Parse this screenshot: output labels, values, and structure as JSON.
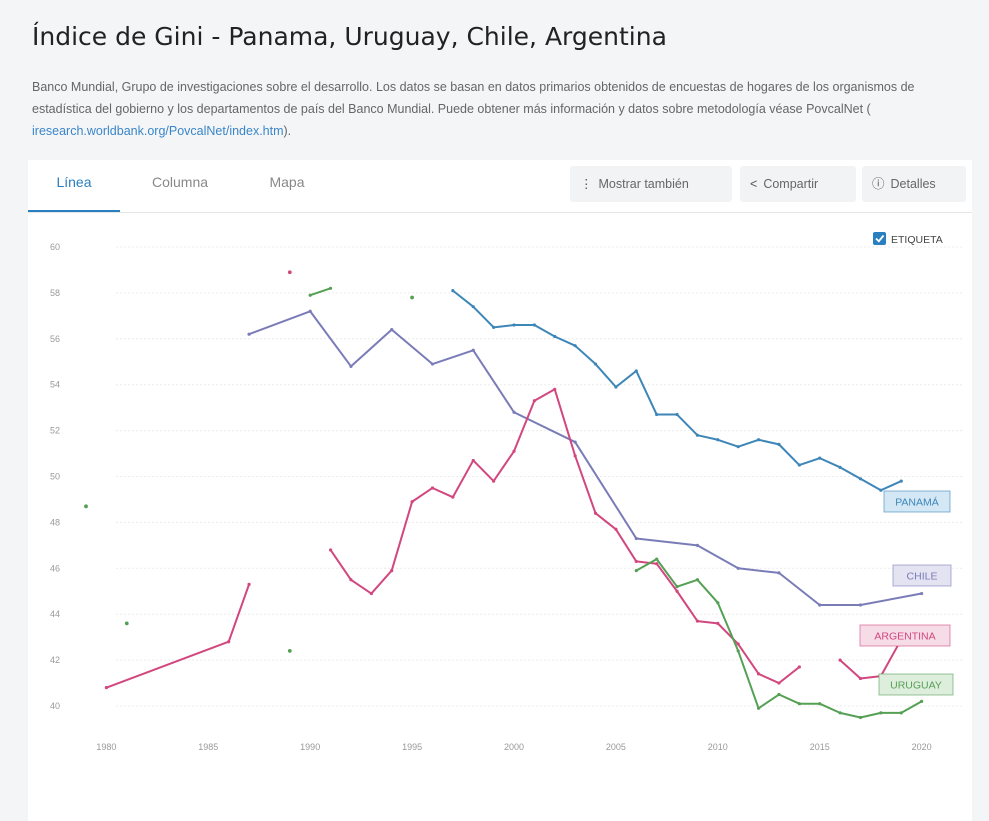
{
  "page": {
    "title": "Índice de Gini - Panama, Uruguay, Chile, Argentina",
    "description_main": "Banco Mundial, Grupo de investigaciones sobre el desarrollo. Los datos se basan en datos primarios obtenidos de encuestas de hogares de los organismos de estadística del gobierno y los departamentos de país del Banco Mundial. Puede obtener más información y datos sobre metodología véase PovcalNet (",
    "description_link": "iresearch.worldbank.org/PovcalNet/index.htm",
    "description_end": ")."
  },
  "tabs": [
    {
      "label": "Línea",
      "active": true
    },
    {
      "label": "Columna",
      "active": false
    },
    {
      "label": "Mapa",
      "active": false
    }
  ],
  "toolbar": {
    "mostrar": "Mostrar también",
    "compartir": "Compartir",
    "detalles": "Detalles",
    "mostrar_icon": "more-vertical-icon",
    "compartir_icon": "share-icon",
    "detalles_icon": "info-icon"
  },
  "checkbox": {
    "label": "ETIQUETA",
    "checked": true
  },
  "chart_data": {
    "type": "line",
    "x_ticks": [
      1980,
      1985,
      1990,
      1995,
      2000,
      2005,
      2010,
      2015,
      2020
    ],
    "y_ticks": [
      40,
      42,
      44,
      46,
      48,
      50,
      52,
      54,
      56,
      58,
      60
    ],
    "xlim": [
      1979,
      2021
    ],
    "ylim": [
      40,
      60
    ],
    "grid": true,
    "series": [
      {
        "name": "PANAMÁ",
        "color": "#3d86b8",
        "label_bg": "#d3e7f5",
        "points": [
          [
            1997,
            58.1
          ],
          [
            1998,
            57.4
          ],
          [
            1999,
            56.5
          ],
          [
            2000,
            56.6
          ],
          [
            2001,
            56.6
          ],
          [
            2002,
            56.1
          ],
          [
            2003,
            55.7
          ],
          [
            2004,
            54.9
          ],
          [
            2005,
            53.9
          ],
          [
            2006,
            54.6
          ],
          [
            2007,
            52.7
          ],
          [
            2008,
            52.7
          ],
          [
            2009,
            51.8
          ],
          [
            2010,
            51.6
          ],
          [
            2011,
            51.3
          ],
          [
            2012,
            51.6
          ],
          [
            2013,
            51.4
          ],
          [
            2014,
            50.5
          ],
          [
            2015,
            50.8
          ],
          [
            2016,
            50.4
          ],
          [
            2017,
            49.9
          ],
          [
            2018,
            49.4
          ],
          [
            2019,
            49.8
          ]
        ]
      },
      {
        "name": "CHILE",
        "color": "#7a7cb8",
        "label_bg": "#e3e3f2",
        "points": [
          [
            1987,
            56.2
          ],
          [
            1990,
            57.2
          ],
          [
            1992,
            54.8
          ],
          [
            1994,
            56.4
          ],
          [
            1996,
            54.9
          ],
          [
            1998,
            55.5
          ],
          [
            2000,
            52.8
          ],
          [
            2003,
            51.5
          ],
          [
            2006,
            47.3
          ],
          [
            2009,
            47.0
          ],
          [
            2011,
            46.0
          ],
          [
            2013,
            45.8
          ],
          [
            2015,
            44.4
          ],
          [
            2017,
            44.4
          ],
          [
            2020,
            44.9
          ]
        ]
      },
      {
        "name": "ARGENTINA",
        "color": "#d1477e",
        "label_bg": "#f6dce6",
        "points": [
          [
            1980,
            40.8
          ],
          [
            1986,
            42.8
          ],
          [
            1987,
            45.3
          ],
          null,
          [
            1989,
            58.9
          ],
          null,
          [
            1991,
            46.8
          ],
          [
            1992,
            45.5
          ],
          [
            1993,
            44.9
          ],
          [
            1994,
            45.9
          ],
          [
            1995,
            48.9
          ],
          [
            1996,
            49.5
          ],
          [
            1997,
            49.1
          ],
          [
            1998,
            50.7
          ],
          [
            1999,
            49.8
          ],
          [
            2000,
            51.1
          ],
          [
            2001,
            53.3
          ],
          [
            2002,
            53.8
          ],
          [
            2003,
            50.9
          ],
          [
            2004,
            48.4
          ],
          [
            2005,
            47.7
          ],
          [
            2006,
            46.3
          ],
          [
            2007,
            46.2
          ],
          [
            2008,
            45.0
          ],
          [
            2009,
            43.7
          ],
          [
            2010,
            43.6
          ],
          [
            2011,
            42.7
          ],
          [
            2012,
            41.4
          ],
          [
            2013,
            41.0
          ],
          [
            2014,
            41.7
          ],
          null,
          [
            2016,
            42.0
          ],
          [
            2017,
            41.2
          ],
          [
            2018,
            41.3
          ],
          [
            2019,
            42.9
          ]
        ]
      },
      {
        "name": "URUGUAY",
        "color": "#55a055",
        "label_bg": "#deeedd",
        "points": [
          [
            1979,
            48.7
          ],
          null,
          [
            1981,
            43.6
          ],
          null,
          [
            1989,
            42.4
          ],
          null,
          [
            1990,
            57.9
          ],
          [
            1991,
            58.2
          ],
          null,
          [
            1995,
            57.8
          ],
          null,
          [
            2006,
            45.9
          ],
          [
            2007,
            46.4
          ],
          [
            2008,
            45.2
          ],
          [
            2009,
            45.5
          ],
          [
            2010,
            44.5
          ],
          [
            2011,
            42.4
          ],
          [
            2012,
            39.9
          ],
          [
            2013,
            40.5
          ],
          [
            2014,
            40.1
          ],
          [
            2015,
            40.1
          ],
          [
            2016,
            39.7
          ],
          [
            2017,
            39.5
          ],
          [
            2018,
            39.7
          ],
          [
            2019,
            39.7
          ],
          [
            2020,
            40.2
          ]
        ]
      }
    ]
  }
}
